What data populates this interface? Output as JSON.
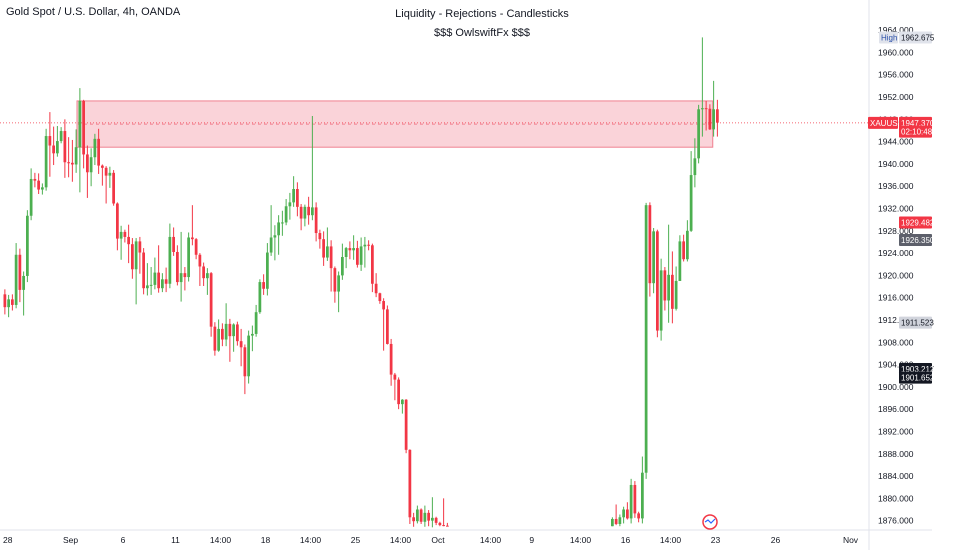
{
  "header": {
    "symbol_title": "Gold Spot / U.S. Dollar, 4h, OANDA",
    "title": "Liquidity - Rejections - Candlesticks",
    "subtitle": "$$$ OwlswiftFx $$$"
  },
  "colors": {
    "up": "#4caf50",
    "down": "#f23645",
    "zone_fill": "#f7b6c0",
    "zone_stroke": "#f08090",
    "price_line": "#f23645",
    "axis_text": "#131722",
    "grid": "#f0f3fa"
  },
  "axis": {
    "ticks": [
      "1964.000",
      "1960.000",
      "1956.000",
      "1952.000",
      "1948.000",
      "1944.000",
      "1940.000",
      "1936.000",
      "1932.000",
      "1928.000",
      "1924.000",
      "1920.000",
      "1916.000",
      "1912.000",
      "1908.000",
      "1904.000",
      "1900.000",
      "1896.000",
      "1892.000",
      "1888.000",
      "1884.000",
      "1880.000",
      "1876.000"
    ]
  },
  "price_labels": [
    {
      "name": "high-label-tag",
      "text": "High",
      "value": 1962.675,
      "bg": "#e0e3eb",
      "fg": "#2a4fa8"
    },
    {
      "name": "high-price-label",
      "text": "1962.675",
      "value": 1962.675,
      "bg": "#e0e3eb",
      "fg": "#131722"
    },
    {
      "name": "xauusd-symbol-tag",
      "text": "XAUUSD",
      "value": 1947.37,
      "bg": "#f23645",
      "fg": "#ffffff"
    },
    {
      "name": "current-price-label",
      "text": "1947.370",
      "value": 1947.37,
      "bg": "#f23645",
      "fg": "#ffffff"
    },
    {
      "name": "countdown-label",
      "text": "02:10:48",
      "value": 1945.8,
      "bg": "#f23645",
      "fg": "#ffffff"
    },
    {
      "name": "price-label-1929",
      "text": "1929.482",
      "value": 1929.482,
      "bg": "#f23645",
      "fg": "#ffffff"
    },
    {
      "name": "price-label-1926",
      "text": "1926.350",
      "value": 1926.35,
      "bg": "#5d606b",
      "fg": "#ffffff"
    },
    {
      "name": "price-label-1911",
      "text": "1911.523",
      "value": 1911.523,
      "bg": "#d1d4dc",
      "fg": "#131722"
    },
    {
      "name": "price-label-1903-green",
      "text": "1903.217",
      "value": 1903.217,
      "bg": "#a5d6a7",
      "fg": "#131722"
    },
    {
      "name": "price-label-1903-black",
      "text": "1903.212",
      "value": 1903.212,
      "bg": "#131722",
      "fg": "#ffffff"
    },
    {
      "name": "price-label-1901",
      "text": "1901.652",
      "value": 1901.652,
      "bg": "#131722",
      "fg": "#ffffff"
    }
  ],
  "time_axis": [
    {
      "label": "28",
      "bar": 0
    },
    {
      "label": "Sep",
      "bar": 18
    },
    {
      "label": "6",
      "bar": 32
    },
    {
      "label": "11",
      "bar": 46
    },
    {
      "label": "14:00",
      "bar": 58
    },
    {
      "label": "18",
      "bar": 70
    },
    {
      "label": "14:00",
      "bar": 82
    },
    {
      "label": "25",
      "bar": 94
    },
    {
      "label": "14:00",
      "bar": 106
    },
    {
      "label": "Oct",
      "bar": 116
    },
    {
      "label": "14:00",
      "bar": 130
    },
    {
      "label": "9",
      "bar": 141
    },
    {
      "label": "14:00",
      "bar": 154
    },
    {
      "label": "16",
      "bar": 166
    },
    {
      "label": "14:00",
      "bar": 178
    },
    {
      "label": "23",
      "bar": 190
    },
    {
      "label": "26",
      "bar": 206
    },
    {
      "label": "Nov",
      "bar": 226
    }
  ],
  "chart_data": {
    "type": "candlestick",
    "symbol": "XAUUSD",
    "timeframe": "4h",
    "title": "Liquidity - Rejections - Candlesticks",
    "subtitle": "$$$ OwlswiftFx $$$",
    "ylim": [
      1874.5,
      1966
    ],
    "grid": false,
    "zone": {
      "top": 1951.3,
      "bottom": 1943.0,
      "end_bar": 189
    },
    "current_price": 1947.37,
    "candles": [
      [
        1916.6,
        1917.5,
        1913.0,
        1914.3
      ],
      [
        1914.3,
        1916.5,
        1912.5,
        1915.7
      ],
      [
        1915.7,
        1916.6,
        1913.7,
        1914.7
      ],
      [
        1914.7,
        1925.8,
        1914.1,
        1923.7
      ],
      [
        1923.7,
        1924.8,
        1915.2,
        1917.4
      ],
      [
        1917.4,
        1920.7,
        1912.8,
        1919.9
      ],
      [
        1919.9,
        1931.7,
        1918.8,
        1930.7
      ],
      [
        1930.7,
        1939.2,
        1929.9,
        1937.3
      ],
      [
        1937.3,
        1938.4,
        1935.8,
        1937.0
      ],
      [
        1937.0,
        1938.3,
        1934.6,
        1935.4
      ],
      [
        1935.4,
        1936.5,
        1934.5,
        1935.8
      ],
      [
        1935.8,
        1946.3,
        1935.2,
        1945.0
      ],
      [
        1945.0,
        1949.3,
        1937.7,
        1943.3
      ],
      [
        1943.3,
        1946.7,
        1939.8,
        1941.9
      ],
      [
        1941.9,
        1946.8,
        1941.3,
        1944.1
      ],
      [
        1944.1,
        1946.6,
        1943.7,
        1945.9
      ],
      [
        1945.9,
        1948.0,
        1937.5,
        1940.3
      ],
      [
        1940.3,
        1944.8,
        1937.6,
        1940.2
      ],
      [
        1940.2,
        1944.3,
        1936.8,
        1939.9
      ],
      [
        1939.9,
        1946.2,
        1938.4,
        1943.0
      ],
      [
        1943.0,
        1953.6,
        1934.9,
        1951.3
      ],
      [
        1951.3,
        1951.5,
        1939.2,
        1941.7
      ],
      [
        1941.7,
        1943.3,
        1933.9,
        1938.5
      ],
      [
        1938.5,
        1942.8,
        1936.0,
        1941.2
      ],
      [
        1941.2,
        1945.4,
        1939.8,
        1944.5
      ],
      [
        1944.5,
        1946.3,
        1938.2,
        1939.7
      ],
      [
        1939.7,
        1939.9,
        1936.1,
        1939.3
      ],
      [
        1939.3,
        1939.6,
        1932.9,
        1937.9
      ],
      [
        1937.9,
        1939.5,
        1935.7,
        1938.4
      ],
      [
        1938.4,
        1938.9,
        1932.5,
        1932.9
      ],
      [
        1932.9,
        1933.1,
        1924.5,
        1926.6
      ],
      [
        1926.6,
        1928.9,
        1922.8,
        1927.8
      ],
      [
        1927.8,
        1928.2,
        1925.9,
        1926.9
      ],
      [
        1926.9,
        1929.1,
        1922.2,
        1925.6
      ],
      [
        1925.6,
        1926.7,
        1919.4,
        1921.1
      ],
      [
        1921.1,
        1926.7,
        1914.8,
        1926.1
      ],
      [
        1926.1,
        1926.9,
        1920.3,
        1924.1
      ],
      [
        1924.1,
        1924.9,
        1916.6,
        1917.7
      ],
      [
        1917.7,
        1922.2,
        1916.4,
        1918.2
      ],
      [
        1918.2,
        1921.5,
        1916.5,
        1918.3
      ],
      [
        1918.3,
        1923.2,
        1917.5,
        1920.5
      ],
      [
        1920.5,
        1925.4,
        1916.9,
        1917.7
      ],
      [
        1917.7,
        1920.4,
        1917.0,
        1919.3
      ],
      [
        1919.3,
        1921.4,
        1917.0,
        1918.5
      ],
      [
        1918.5,
        1929.3,
        1917.7,
        1926.9
      ],
      [
        1926.9,
        1928.6,
        1923.5,
        1924.2
      ],
      [
        1924.2,
        1925.4,
        1918.2,
        1918.8
      ],
      [
        1918.8,
        1927.8,
        1915.3,
        1920.4
      ],
      [
        1920.4,
        1921.5,
        1917.3,
        1919.7
      ],
      [
        1919.7,
        1927.7,
        1918.9,
        1926.8
      ],
      [
        1926.8,
        1932.6,
        1925.4,
        1926.5
      ],
      [
        1926.5,
        1926.7,
        1922.9,
        1923.7
      ],
      [
        1923.7,
        1924.0,
        1918.1,
        1921.6
      ],
      [
        1921.6,
        1922.3,
        1918.1,
        1919.5
      ],
      [
        1919.5,
        1921.3,
        1916.5,
        1920.4
      ],
      [
        1920.4,
        1920.6,
        1909.0,
        1910.8
      ],
      [
        1910.8,
        1911.6,
        1905.6,
        1906.5
      ],
      [
        1906.5,
        1912.1,
        1906.3,
        1910.4
      ],
      [
        1910.4,
        1911.4,
        1907.3,
        1908.5
      ],
      [
        1908.5,
        1915.0,
        1907.3,
        1911.3
      ],
      [
        1911.3,
        1912.2,
        1904.5,
        1909.1
      ],
      [
        1909.1,
        1911.4,
        1906.3,
        1911.2
      ],
      [
        1911.2,
        1911.7,
        1907.4,
        1908.2
      ],
      [
        1908.2,
        1910.4,
        1903.7,
        1907.1
      ],
      [
        1907.1,
        1907.6,
        1898.7,
        1901.9
      ],
      [
        1901.9,
        1910.1,
        1900.6,
        1909.2
      ],
      [
        1909.2,
        1911.0,
        1906.4,
        1909.5
      ],
      [
        1909.5,
        1914.7,
        1909.0,
        1913.4
      ],
      [
        1913.4,
        1919.3,
        1913.1,
        1918.8
      ],
      [
        1918.8,
        1920.2,
        1916.5,
        1917.6
      ],
      [
        1917.6,
        1925.8,
        1916.4,
        1924.1
      ],
      [
        1924.1,
        1932.6,
        1923.5,
        1926.8
      ],
      [
        1926.8,
        1929.0,
        1922.7,
        1927.2
      ],
      [
        1927.2,
        1930.8,
        1923.7,
        1929.5
      ],
      [
        1929.5,
        1931.6,
        1927.1,
        1929.5
      ],
      [
        1929.5,
        1933.7,
        1929.0,
        1932.4
      ],
      [
        1932.4,
        1934.8,
        1930.0,
        1933.1
      ],
      [
        1933.1,
        1937.8,
        1932.3,
        1935.5
      ],
      [
        1935.5,
        1936.7,
        1930.6,
        1932.3
      ],
      [
        1932.3,
        1932.8,
        1928.1,
        1930.2
      ],
      [
        1930.2,
        1932.7,
        1928.8,
        1932.3
      ],
      [
        1932.3,
        1934.1,
        1929.1,
        1930.8
      ],
      [
        1930.8,
        1948.6,
        1929.9,
        1932.2
      ],
      [
        1932.2,
        1933.1,
        1926.1,
        1927.6
      ],
      [
        1927.6,
        1928.2,
        1924.8,
        1926.5
      ],
      [
        1926.5,
        1927.9,
        1921.7,
        1923.2
      ],
      [
        1923.2,
        1928.6,
        1922.6,
        1925.2
      ],
      [
        1925.2,
        1926.3,
        1917.1,
        1921.3
      ],
      [
        1921.3,
        1921.6,
        1915.1,
        1917.1
      ],
      [
        1917.1,
        1920.7,
        1913.4,
        1920.0
      ],
      [
        1920.0,
        1925.7,
        1919.2,
        1923.3
      ],
      [
        1923.3,
        1925.1,
        1921.3,
        1924.9
      ],
      [
        1924.9,
        1926.1,
        1922.9,
        1924.5
      ],
      [
        1924.5,
        1927.2,
        1922.8,
        1924.9
      ],
      [
        1924.9,
        1926.2,
        1921.4,
        1921.9
      ],
      [
        1921.9,
        1926.8,
        1920.8,
        1925.2
      ],
      [
        1925.2,
        1926.9,
        1921.4,
        1925.5
      ],
      [
        1925.5,
        1926.3,
        1924.5,
        1925.4
      ],
      [
        1925.4,
        1925.7,
        1917.0,
        1918.5
      ],
      [
        1918.5,
        1920.4,
        1916.1,
        1916.8
      ],
      [
        1916.8,
        1916.9,
        1914.9,
        1915.4
      ],
      [
        1915.4,
        1915.9,
        1906.5,
        1913.9
      ],
      [
        1913.9,
        1914.6,
        1907.6,
        1907.7
      ],
      [
        1907.7,
        1908.6,
        1900.2,
        1902.2
      ],
      [
        1902.2,
        1902.5,
        1897.6,
        1901.3
      ],
      [
        1901.3,
        1901.7,
        1896.0,
        1896.9
      ],
      [
        1896.9,
        1897.8,
        1895.2,
        1897.7
      ],
      [
        1897.7,
        1897.8,
        1888.1,
        1888.7
      ],
      [
        1888.7,
        1888.8,
        1875.4,
        1876.6
      ],
      [
        1876.6,
        1877.4,
        1874.9,
        1875.9
      ],
      [
        1875.9,
        1878.7,
        1875.5,
        1878.0
      ],
      [
        1878.0,
        1878.2,
        1875.4,
        1875.8
      ],
      [
        1875.8,
        1878.7,
        1874.9,
        1877.4
      ],
      [
        1877.4,
        1877.9,
        1875.0,
        1876.0
      ],
      [
        1876.0,
        1880.2,
        1874.8,
        1876.5
      ],
      [
        1876.5,
        1876.7,
        1875.2,
        1875.6
      ],
      [
        1875.6,
        1875.8,
        1875.0,
        1875.2
      ],
      [
        1875.2,
        1880.0,
        1875.0,
        1875.1
      ],
      [
        1875.1,
        1875.6,
        1875.0,
        1875.0
      ],
      [
        1875.0,
        1875.0,
        1875.0,
        1875.0
      ],
      [
        1875.0,
        1875.0,
        1875.0,
        1875.0
      ],
      [
        1875.0,
        1875.0,
        1875.0,
        1875.0
      ],
      [
        1875.0,
        1875.0,
        1875.0,
        1875.0
      ],
      [
        1875.0,
        1875.0,
        1875.0,
        1875.0
      ],
      [
        1875.0,
        1875.0,
        1875.0,
        1875.0
      ],
      [
        1875.0,
        1875.0,
        1875.0,
        1875.0
      ],
      [
        1875.0,
        1875.0,
        1875.0,
        1875.0
      ],
      [
        1875.0,
        1875.0,
        1875.0,
        1875.0
      ],
      [
        1875.0,
        1875.0,
        1875.0,
        1875.0
      ],
      [
        1875.0,
        1875.0,
        1875.0,
        1875.0
      ],
      [
        1875.0,
        1875.0,
        1875.0,
        1875.0
      ],
      [
        1875.0,
        1875.0,
        1875.0,
        1875.0
      ],
      [
        1875.0,
        1875.0,
        1875.0,
        1875.0
      ],
      [
        1875.0,
        1875.0,
        1875.0,
        1875.0
      ],
      [
        1875.0,
        1875.0,
        1875.0,
        1875.0
      ],
      [
        1875.0,
        1875.0,
        1875.0,
        1875.0
      ],
      [
        1875.0,
        1875.0,
        1875.0,
        1875.0
      ],
      [
        1875.0,
        1875.0,
        1875.0,
        1875.0
      ],
      [
        1875.0,
        1875.0,
        1875.0,
        1875.0
      ],
      [
        1875.0,
        1875.0,
        1875.0,
        1875.0
      ],
      [
        1875.0,
        1875.0,
        1875.0,
        1875.0
      ],
      [
        1875.0,
        1875.0,
        1875.0,
        1875.0
      ],
      [
        1875.0,
        1875.0,
        1875.0,
        1875.0
      ],
      [
        1875.0,
        1875.0,
        1875.0,
        1875.0
      ],
      [
        1875.0,
        1875.0,
        1875.0,
        1875.0
      ],
      [
        1875.0,
        1875.0,
        1875.0,
        1875.0
      ],
      [
        1875.0,
        1875.0,
        1875.0,
        1875.0
      ],
      [
        1875.0,
        1875.0,
        1875.0,
        1875.0
      ],
      [
        1875.0,
        1875.0,
        1875.0,
        1875.0
      ],
      [
        1875.0,
        1875.0,
        1875.0,
        1875.0
      ],
      [
        1875.0,
        1875.0,
        1875.0,
        1875.0
      ],
      [
        1875.0,
        1875.0,
        1875.0,
        1875.0
      ],
      [
        1875.0,
        1875.0,
        1875.0,
        1875.0
      ],
      [
        1875.0,
        1875.0,
        1875.0,
        1875.0
      ],
      [
        1875.0,
        1875.0,
        1875.0,
        1875.0
      ],
      [
        1875.0,
        1875.0,
        1875.0,
        1875.0
      ],
      [
        1875.0,
        1875.0,
        1875.0,
        1875.0
      ],
      [
        1875.0,
        1875.0,
        1875.0,
        1875.0
      ],
      [
        1875.0,
        1875.0,
        1875.0,
        1875.0
      ],
      [
        1875.0,
        1875.0,
        1875.0,
        1875.0
      ],
      [
        1875.0,
        1875.0,
        1875.0,
        1875.0
      ],
      [
        1875.0,
        1875.0,
        1875.0,
        1875.0
      ],
      [
        1875.0,
        1876.6,
        1875.0,
        1876.3
      ],
      [
        1876.3,
        1878.9,
        1875.2,
        1875.4
      ],
      [
        1875.4,
        1877.1,
        1875.0,
        1876.6
      ],
      [
        1876.6,
        1878.5,
        1875.5,
        1878.0
      ],
      [
        1878.0,
        1879.3,
        1876.2,
        1876.4
      ],
      [
        1876.4,
        1883.5,
        1875.5,
        1882.4
      ],
      [
        1882.4,
        1883.1,
        1876.5,
        1877.3
      ],
      [
        1877.3,
        1877.6,
        1875.7,
        1876.4
      ],
      [
        1876.4,
        1887.5,
        1875.5,
        1884.6
      ],
      [
        1884.6,
        1933.0,
        1883.5,
        1932.6
      ],
      [
        1932.6,
        1933.1,
        1916.2,
        1918.6
      ],
      [
        1918.6,
        1928.5,
        1916.8,
        1927.9
      ],
      [
        1927.9,
        1928.2,
        1908.9,
        1910.1
      ],
      [
        1910.1,
        1923.0,
        1908.3,
        1920.9
      ],
      [
        1920.9,
        1921.5,
        1913.7,
        1915.5
      ],
      [
        1915.5,
        1929.1,
        1911.5,
        1920.1
      ],
      [
        1920.1,
        1924.3,
        1911.4,
        1914.0
      ],
      [
        1914.0,
        1921.6,
        1913.7,
        1919.0
      ],
      [
        1919.0,
        1927.2,
        1919.0,
        1926.1
      ],
      [
        1926.1,
        1927.3,
        1922.5,
        1922.9
      ],
      [
        1922.9,
        1929.9,
        1922.5,
        1928.0
      ],
      [
        1928.0,
        1942.3,
        1927.8,
        1938.0
      ],
      [
        1938.0,
        1944.6,
        1935.8,
        1941.0
      ],
      [
        1941.0,
        1950.6,
        1940.1,
        1949.8
      ],
      [
        1949.8,
        1962.7,
        1944.9,
        1950.0
      ],
      [
        1950.0,
        1951.3,
        1946.0,
        1949.9
      ],
      [
        1949.9,
        1950.7,
        1946.1,
        1946.2
      ],
      [
        1946.2,
        1954.9,
        1944.9,
        1949.8
      ],
      [
        1949.8,
        1951.5,
        1944.9,
        1947.4
      ]
    ]
  },
  "watermark_icon": "tradingview-logo-icon"
}
